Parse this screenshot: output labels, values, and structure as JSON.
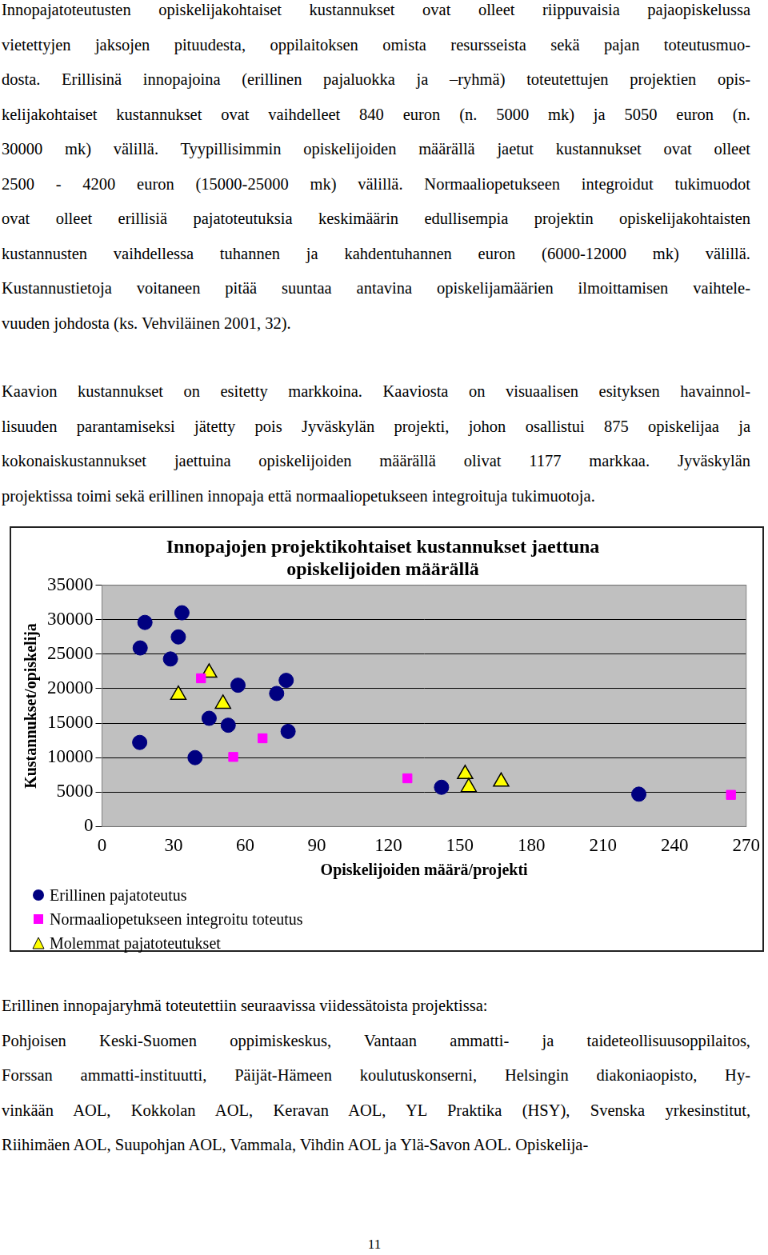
{
  "text_above": {
    "paragraphs": [
      [
        "Innopajatoteutusten opiskelijakohtaiset kustannukset ovat olleet riippuvaisia pajaopiskelussa",
        "vietettyjen jaksojen pituudesta, oppilaitoksen omista resursseista sekä pajan toteutusmuo-",
        "dosta. Erillisinä innopajoina (erillinen pajaluokka ja –ryhmä) toteutettujen projektien opis-",
        "kelijakohtaiset kustannukset ovat vaihdelleet 840 euron (n. 5000 mk) ja 5050 euron (n.",
        "30000 mk) välillä. Tyypillisimmin opiskelijoiden määrällä jaetut kustannukset ovat olleet",
        "2500 - 4200 euron (15000-25000 mk) välillä. Normaaliopetukseen integroidut tukimuodot",
        "ovat olleet erillisiä pajatoteutuksia keskimäärin edullisempia projektin opiskelijakohtaisten",
        "kustannusten vaihdellessa tuhannen ja kahdentuhannen euron (6000-12000 mk) välillä.",
        "Kustannustietoja voitaneen pitää suuntaa antavina opiskelijamäärien ilmoittamisen vaihtele-",
        "vuuden johdosta (ks. Vehviläinen 2001, 32)."
      ],
      [
        "Kaavion kustannukset on esitetty markkoina. Kaaviosta on visuaalisen esityksen havainnol-",
        "lisuuden parantamiseksi jätetty pois Jyväskylän projekti, johon osallistui 875 opiskelijaa ja",
        "kokonaiskustannukset jaettuina opiskelijoiden määrällä olivat 1177 markkaa. Jyväskylän",
        "projektissa toimi sekä erillinen innopaja että normaaliopetukseen integroituja tukimuotoja."
      ]
    ]
  },
  "chart_data": {
    "type": "scatter",
    "title": [
      "Innopajojen projektikohtaiset kustannukset jaettuna",
      "opiskelijoiden määrällä"
    ],
    "x_label": "Opiskelijoiden määrä/projekti",
    "y_label": "Kustannukset/opiskelija",
    "xlim": [
      0,
      270
    ],
    "xticks": [
      0,
      30,
      60,
      90,
      120,
      150,
      180,
      210,
      240,
      270
    ],
    "ylim": [
      0,
      35000
    ],
    "yticks": [
      0,
      5000,
      10000,
      15000,
      20000,
      25000,
      30000,
      35000
    ],
    "grid": true,
    "legend": "bottom",
    "series": [
      {
        "name": "Erillinen pajatoteutus",
        "color": "#000080",
        "marker": "circle",
        "x": [
          16,
          18,
          33.5,
          32,
          28.7,
          15.8,
          44.9,
          39,
          57,
          52.9,
          73.2,
          77.2,
          78,
          142.3,
          225
        ],
        "values": [
          25900,
          29600,
          31000,
          27500,
          24300,
          12200,
          15700,
          10000,
          20500,
          14700,
          19300,
          21200,
          13800,
          5700,
          4700
        ]
      },
      {
        "name": "Normaaliopetukseen integroitu toteutus",
        "color": "#ff00ff",
        "marker": "square",
        "x": [
          41.5,
          55,
          67.3,
          128,
          263.6
        ],
        "values": [
          21500,
          10100,
          12800,
          7000,
          4600
        ]
      },
      {
        "name": "Molemmat pajatoteutukset",
        "color": "#ffff00",
        "marker": "triangle",
        "x": [
          44.9,
          32,
          50.7,
          152.2,
          153.7,
          167.3
        ],
        "values": [
          22300,
          19100,
          17800,
          7600,
          5700,
          6500
        ]
      }
    ]
  },
  "text_below": {
    "paragraphs": [
      [
        "Erillinen innopajaryhmä toteutettiin seuraavissa viidessätoista projektissa:"
      ],
      [
        "Pohjoisen Keski-Suomen oppimiskeskus, Vantaan ammatti- ja taideteollisuusoppilaitos,",
        "Forssan ammatti-instituutti, Päijät-Hämeen koulutuskonserni, Helsingin diakoniaopisto, Hy-",
        "vinkään AOL, Kokkolan AOL, Keravan AOL, YL  Praktika (HSY), Svenska yrkesinstitut,",
        "Riihimäen AOL, Suupohjan AOL, Vammala, Vihdin AOL ja Ylä-Savon AOL. Opiskelija-"
      ]
    ]
  },
  "page_number": "11"
}
